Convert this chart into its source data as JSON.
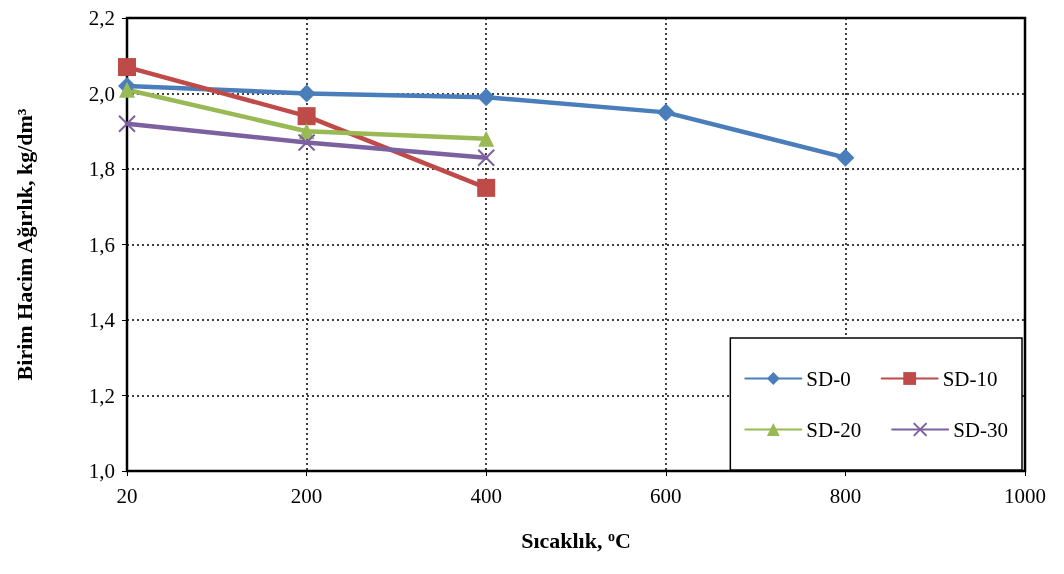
{
  "chart_data": {
    "type": "line",
    "xlabel": "Sıcaklık, $^{o}$C",
    "ylabel": "Birim Hacim Ağırlık, kg/dm³",
    "categories": [
      "20",
      "200",
      "400",
      "600",
      "800",
      "1000"
    ],
    "series": [
      {
        "name": "SD-0",
        "color": "#4a7ebb",
        "marker": "diamond",
        "values": [
          2.02,
          2.0,
          1.99,
          1.95,
          1.83,
          null
        ]
      },
      {
        "name": "SD-10",
        "color": "#be4b48",
        "marker": "square",
        "values": [
          2.07,
          1.94,
          1.75,
          null,
          null,
          null
        ]
      },
      {
        "name": "SD-20",
        "color": "#98b954",
        "marker": "triangle",
        "values": [
          2.01,
          1.9,
          1.88,
          null,
          null,
          null
        ]
      },
      {
        "name": "SD-30",
        "color": "#7d60a0",
        "marker": "cross",
        "values": [
          1.92,
          1.87,
          1.83,
          null,
          null,
          null
        ]
      }
    ],
    "ylim": [
      1.0,
      2.2
    ],
    "yticks": [
      {
        "value": 1.0,
        "label": "1,0"
      },
      {
        "value": 1.2,
        "label": "1,2"
      },
      {
        "value": 1.4,
        "label": "1,4"
      },
      {
        "value": 1.6,
        "label": "1,6"
      },
      {
        "value": 1.8,
        "label": "1,8"
      },
      {
        "value": 2.0,
        "label": "2,0"
      },
      {
        "value": 2.2,
        "label": "2,2"
      }
    ],
    "grid": true,
    "legend": "bottom right",
    "line_style": "solid"
  }
}
